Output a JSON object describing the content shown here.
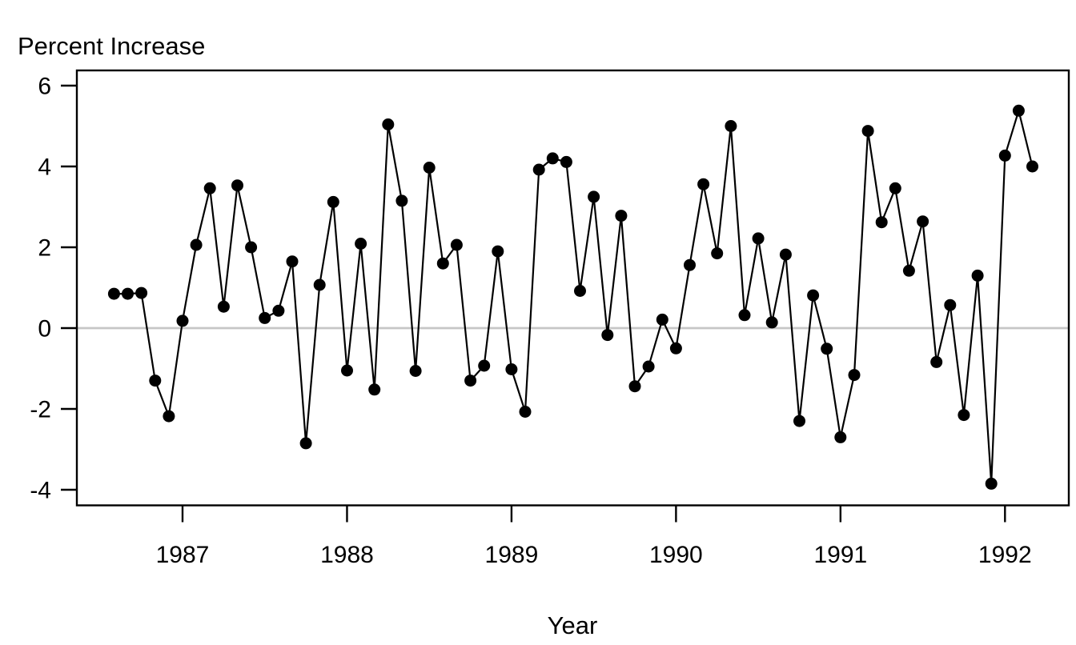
{
  "chart_data": {
    "type": "line",
    "title": "Percent Increase",
    "ylabel": "Percent Increase",
    "xlabel": "Year",
    "x_tick_labels": [
      "1987",
      "1988",
      "1989",
      "1990",
      "1991",
      "1992"
    ],
    "x_tick_years": [
      1987,
      1988,
      1989,
      1990,
      1991,
      1992
    ],
    "y_tick_labels": [
      "-4",
      "-2",
      "0",
      "2",
      "4",
      "6"
    ],
    "y_tick_values": [
      -4,
      -2,
      0,
      2,
      4,
      6
    ],
    "xlim": [
      1986.36,
      1992.39
    ],
    "ylim": [
      -4.39,
      6.38
    ],
    "grid": false,
    "zero_reference_line": true,
    "legend": "none",
    "marker": "filled-circle",
    "frequency": "monthly",
    "series_start": "1986-08",
    "line_color": "#000000",
    "point_color": "#000000",
    "zero_line_color": "#c6c6c6",
    "background_color": "#ffffff",
    "months": [
      "1986-08",
      "1986-09",
      "1986-10",
      "1986-11",
      "1986-12",
      "1987-01",
      "1987-02",
      "1987-03",
      "1987-04",
      "1987-05",
      "1987-06",
      "1987-07",
      "1987-08",
      "1987-09",
      "1987-10",
      "1987-11",
      "1987-12",
      "1988-01",
      "1988-02",
      "1988-03",
      "1988-04",
      "1988-05",
      "1988-06",
      "1988-07",
      "1988-08",
      "1988-09",
      "1988-10",
      "1988-11",
      "1988-12",
      "1989-01",
      "1989-02",
      "1989-03",
      "1989-04",
      "1989-05",
      "1989-06",
      "1989-07",
      "1989-08",
      "1989-09",
      "1989-10",
      "1989-11",
      "1989-12",
      "1990-01",
      "1990-02",
      "1990-03",
      "1990-04",
      "1990-05",
      "1990-06",
      "1990-07",
      "1990-08",
      "1990-09",
      "1990-10",
      "1990-11",
      "1990-12",
      "1991-01",
      "1991-02",
      "1991-03",
      "1991-04",
      "1991-05",
      "1991-06",
      "1991-07",
      "1991-08",
      "1991-09",
      "1991-10",
      "1991-11",
      "1991-12",
      "1992-01",
      "1992-02",
      "1992-03"
    ],
    "values": [
      0.85,
      0.85,
      0.87,
      -1.3,
      -2.18,
      0.18,
      2.06,
      3.46,
      0.53,
      3.53,
      2.0,
      0.25,
      0.43,
      1.65,
      -2.85,
      1.07,
      3.12,
      -1.05,
      2.09,
      -1.52,
      5.04,
      3.15,
      -1.06,
      3.97,
      1.6,
      2.06,
      -1.3,
      -0.93,
      1.9,
      -1.02,
      -2.07,
      3.92,
      4.2,
      4.11,
      0.92,
      3.25,
      -0.17,
      2.78,
      -1.44,
      -0.95,
      0.21,
      -0.5,
      1.56,
      3.56,
      1.85,
      5.0,
      0.32,
      2.22,
      0.14,
      1.82,
      -2.3,
      0.81,
      -0.51,
      -2.7,
      -1.16,
      4.88,
      2.62,
      3.46,
      1.42,
      2.64,
      -0.84,
      0.57,
      -2.15,
      1.3,
      -3.85,
      4.27,
      5.38,
      4.0
    ]
  }
}
